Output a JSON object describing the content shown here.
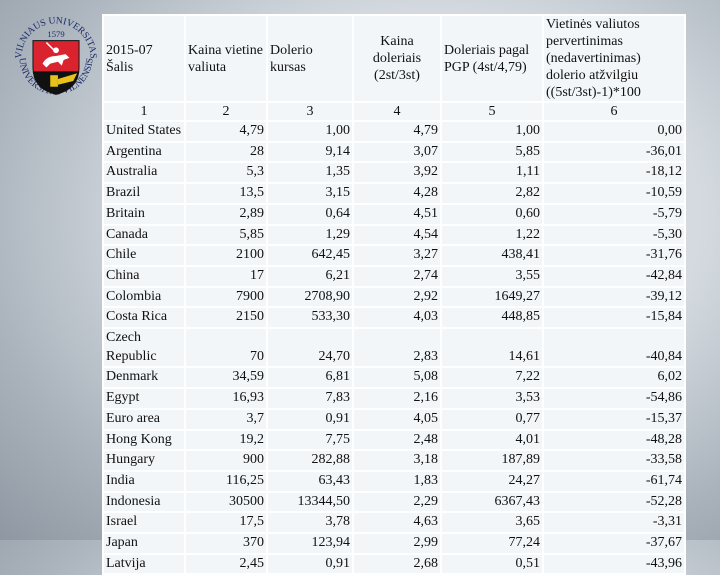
{
  "logo": {
    "text_top": "VILNIAUS UNIVERSITAS",
    "year": "1579",
    "text_bottom": "UNIVERSITAS VILNENSIS",
    "shield_color": "#d9232e"
  },
  "table": {
    "headers": [
      "2015-07 Šalis",
      "Kaina vietine valiuta",
      "Dolerio kursas",
      "Kaina doleriais (2st/3st)",
      "Doleriais pagal PGP (4st/4,79)",
      "Vietinės valiutos pervertinimas (nedavertinimas) dolerio atžvilgiu ((5st/3st)-1)*100"
    ],
    "numbers": [
      "1",
      "2",
      "3",
      "4",
      "5",
      "6"
    ],
    "rows": [
      [
        "United States",
        "4,79",
        "1,00",
        "4,79",
        "1,00",
        "0,00"
      ],
      [
        "Argentina",
        "28",
        "9,14",
        "3,07",
        "5,85",
        "-36,01"
      ],
      [
        "Australia",
        "5,3",
        "1,35",
        "3,92",
        "1,11",
        "-18,12"
      ],
      [
        "Brazil",
        "13,5",
        "3,15",
        "4,28",
        "2,82",
        "-10,59"
      ],
      [
        "Britain",
        "2,89",
        "0,64",
        "4,51",
        "0,60",
        "-5,79"
      ],
      [
        "Canada",
        "5,85",
        "1,29",
        "4,54",
        "1,22",
        "-5,30"
      ],
      [
        "Chile",
        "2100",
        "642,45",
        "3,27",
        "438,41",
        "-31,76"
      ],
      [
        "China",
        "17",
        "6,21",
        "2,74",
        "3,55",
        "-42,84"
      ],
      [
        "Colombia",
        "7900",
        "2708,90",
        "2,92",
        "1649,27",
        "-39,12"
      ],
      [
        "Costa Rica",
        "2150",
        "533,30",
        "4,03",
        "448,85",
        "-15,84"
      ],
      [
        "Czech Republic",
        "70",
        "24,70",
        "2,83",
        "14,61",
        "-40,84"
      ],
      [
        "Denmark",
        "34,59",
        "6,81",
        "5,08",
        "7,22",
        "6,02"
      ],
      [
        "Egypt",
        "16,93",
        "7,83",
        "2,16",
        "3,53",
        "-54,86"
      ],
      [
        "Euro area",
        "3,7",
        "0,91",
        "4,05",
        "0,77",
        "-15,37"
      ],
      [
        "Hong Kong",
        "19,2",
        "7,75",
        "2,48",
        "4,01",
        "-48,28"
      ],
      [
        "Hungary",
        "900",
        "282,88",
        "3,18",
        "187,89",
        "-33,58"
      ],
      [
        "India",
        "116,25",
        "63,43",
        "1,83",
        "24,27",
        "-61,74"
      ],
      [
        "Indonesia",
        "30500",
        "13344,50",
        "2,29",
        "6367,43",
        "-52,28"
      ],
      [
        "Israel",
        "17,5",
        "3,78",
        "4,63",
        "3,65",
        "-3,31"
      ],
      [
        "Japan",
        "370",
        "123,94",
        "2,99",
        "77,24",
        "-37,67"
      ],
      [
        "Latvija",
        "2,45",
        "0,91",
        "2,68",
        "0,51",
        "-43,96"
      ]
    ]
  }
}
